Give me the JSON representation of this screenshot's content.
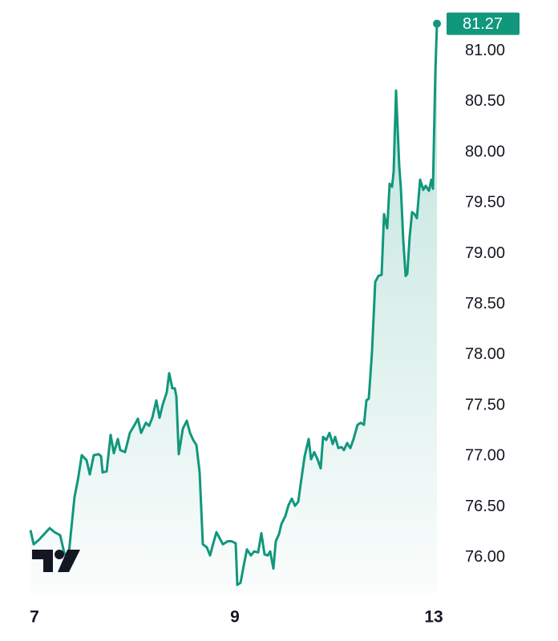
{
  "chart_data": {
    "type": "line",
    "color": "#11977c",
    "x": [
      0,
      4,
      10,
      17,
      24,
      30,
      37,
      42,
      47,
      50,
      55,
      59,
      64,
      70,
      74,
      79,
      85,
      88,
      90,
      95,
      100,
      104,
      109,
      112,
      118,
      124,
      130,
      134,
      138,
      144,
      148,
      152,
      157,
      161,
      165,
      170,
      173,
      177,
      180,
      182,
      185,
      190,
      195,
      199,
      203,
      207,
      211,
      215,
      220,
      224,
      228,
      232,
      236,
      240,
      246,
      251,
      256,
      258,
      262,
      266,
      270,
      275,
      279,
      284,
      288,
      292,
      296,
      299,
      303,
      306,
      310,
      313,
      318,
      322,
      326,
      330,
      334,
      338,
      342,
      347,
      350,
      354,
      358,
      362,
      365,
      369,
      373,
      377,
      380,
      384,
      388,
      391,
      395,
      399,
      403,
      408,
      412,
      416,
      419,
      422,
      426,
      430,
      434,
      438,
      441,
      445,
      448,
      451,
      453,
      456,
      460,
      462,
      465,
      468,
      470,
      473,
      476,
      479,
      482,
      486,
      490,
      493,
      497,
      500,
      502,
      505,
      507
    ],
    "values": [
      76.27,
      76.13,
      76.17,
      76.23,
      76.29,
      76.25,
      76.22,
      76.05,
      75.97,
      76.21,
      76.6,
      76.76,
      77.01,
      76.96,
      76.82,
      77.01,
      77.02,
      77.0,
      76.84,
      76.85,
      77.21,
      77.03,
      77.17,
      77.06,
      77.04,
      77.23,
      77.31,
      77.37,
      77.23,
      77.33,
      77.3,
      77.38,
      77.55,
      77.38,
      77.51,
      77.63,
      77.82,
      77.67,
      77.67,
      77.59,
      77.02,
      77.27,
      77.35,
      77.23,
      77.16,
      77.11,
      76.84,
      76.13,
      76.1,
      76.02,
      76.14,
      76.25,
      76.19,
      76.13,
      76.16,
      76.16,
      76.14,
      75.73,
      75.75,
      75.92,
      76.08,
      76.02,
      76.06,
      76.05,
      76.24,
      76.03,
      76.02,
      76.06,
      75.89,
      76.16,
      76.23,
      76.33,
      76.41,
      76.52,
      76.58,
      76.51,
      76.55,
      76.78,
      77.0,
      77.17,
      76.97,
      77.04,
      76.97,
      76.88,
      77.19,
      77.16,
      77.23,
      77.12,
      77.19,
      77.08,
      77.09,
      77.06,
      77.13,
      77.08,
      77.17,
      77.31,
      77.33,
      77.31,
      77.55,
      77.57,
      78.03,
      78.72,
      78.78,
      78.79,
      79.39,
      79.25,
      79.69,
      79.66,
      79.81,
      80.61,
      79.86,
      79.65,
      79.13,
      78.78,
      78.8,
      79.17,
      79.41,
      79.39,
      79.35,
      79.73,
      79.63,
      79.67,
      79.62,
      79.73,
      79.64,
      80.79,
      81.27
    ],
    "xlim": [
      0,
      507
    ],
    "xticks": [
      {
        "value": 5,
        "label": "7"
      },
      {
        "value": 255,
        "label": "9"
      },
      {
        "value": 503,
        "label": "13"
      }
    ],
    "ylim": [
      75.65,
      81.425
    ],
    "yticks": [
      {
        "value": 76,
        "label": "76.00"
      },
      {
        "value": 76.5,
        "label": "76.50"
      },
      {
        "value": 77,
        "label": "77.00"
      },
      {
        "value": 77.5,
        "label": "77.50"
      },
      {
        "value": 78,
        "label": "78.00"
      },
      {
        "value": 78.5,
        "label": "78.50"
      },
      {
        "value": 79,
        "label": "79.00"
      },
      {
        "value": 79.5,
        "label": "79.50"
      },
      {
        "value": 80,
        "label": "80.00"
      },
      {
        "value": 80.5,
        "label": "80.50"
      },
      {
        "value": 81,
        "label": "81.00"
      }
    ],
    "grid": false
  }
}
